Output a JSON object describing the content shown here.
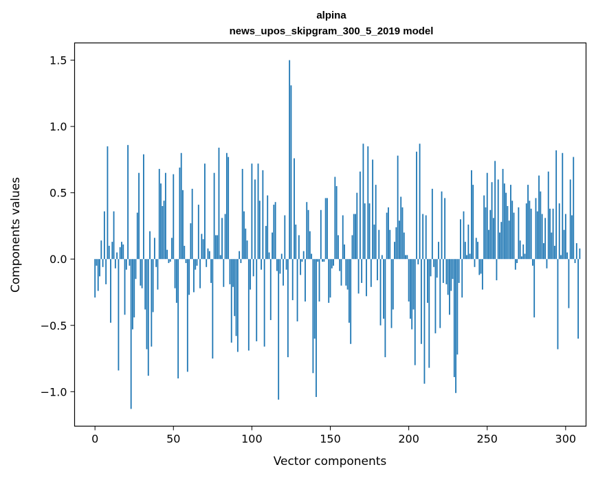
{
  "chart_data": {
    "type": "bar",
    "title": "alpina",
    "subtitle": "news_upos_skipgram_300_5_2019 model",
    "xlabel": "Vector components",
    "ylabel": "Components values",
    "xlim": [
      -13,
      313
    ],
    "ylim": [
      -1.26,
      1.63
    ],
    "xticks": [
      0,
      50,
      100,
      150,
      200,
      250,
      300
    ],
    "yticks": [
      -1.0,
      -0.5,
      0.0,
      0.5,
      1.0,
      1.5
    ],
    "yticklabels": [
      "−1.0",
      "−0.5",
      "0.0",
      "0.5",
      "1.0",
      "1.5"
    ],
    "bar_color": "#1f77b4",
    "grid": false,
    "values": [
      -0.29,
      -0.05,
      -0.24,
      -0.13,
      0.14,
      -0.06,
      0.36,
      -0.19,
      0.85,
      0.1,
      -0.48,
      0.13,
      0.36,
      -0.07,
      0.05,
      -0.84,
      0.09,
      0.13,
      0.11,
      -0.42,
      -0.08,
      0.86,
      -0.05,
      -1.13,
      -0.53,
      -0.44,
      -0.15,
      0.35,
      0.65,
      -0.2,
      -0.22,
      0.79,
      -0.38,
      -0.68,
      -0.88,
      0.21,
      -0.66,
      -0.4,
      0.16,
      -0.06,
      -0.23,
      0.68,
      0.57,
      0.4,
      0.44,
      0.65,
      0.07,
      -0.03,
      -0.02,
      0.16,
      0.64,
      -0.22,
      -0.33,
      -0.9,
      0.69,
      0.8,
      0.52,
      0.1,
      -0.03,
      -0.85,
      -0.27,
      0.27,
      0.53,
      -0.25,
      -0.08,
      -0.05,
      0.41,
      -0.22,
      0.19,
      0.15,
      0.72,
      -0.06,
      0.08,
      0.06,
      -0.18,
      -0.75,
      0.65,
      0.18,
      0.18,
      0.84,
      0.03,
      0.31,
      -0.21,
      0.34,
      0.8,
      0.77,
      -0.19,
      -0.63,
      -0.21,
      -0.43,
      -0.58,
      -0.7,
      0.06,
      -0.03,
      0.68,
      0.36,
      0.23,
      0.14,
      -0.69,
      -0.23,
      0.72,
      -0.13,
      0.6,
      -0.62,
      0.72,
      0.44,
      -0.08,
      0.67,
      -0.66,
      0.25,
      0.48,
      0.05,
      -0.46,
      0.2,
      0.41,
      0.43,
      -0.09,
      -1.06,
      -0.11,
      0.04,
      -0.2,
      0.33,
      -0.08,
      -0.74,
      1.5,
      1.31,
      -0.31,
      0.76,
      0.26,
      -0.47,
      0.18,
      -0.12,
      -0.02,
      0.06,
      -0.32,
      0.43,
      0.37,
      0.21,
      0.04,
      -0.86,
      -0.6,
      -1.04,
      -0.02,
      -0.32,
      0.37,
      -0.02,
      -0.02,
      0.46,
      0.46,
      -0.33,
      -0.29,
      -0.07,
      -0.05,
      0.62,
      0.55,
      0.18,
      -0.09,
      -0.2,
      0.33,
      0.11,
      -0.2,
      -0.23,
      -0.48,
      -0.64,
      0.18,
      0.34,
      0.34,
      0.5,
      -0.26,
      0.66,
      -0.18,
      0.87,
      0.42,
      -0.28,
      0.85,
      0.42,
      -0.21,
      0.75,
      0.26,
      0.56,
      -0.16,
      0.22,
      -0.5,
      0.03,
      -0.45,
      -0.74,
      0.35,
      0.39,
      0.22,
      -0.52,
      -0.38,
      0.13,
      0.24,
      0.78,
      0.29,
      0.47,
      0.39,
      0.2,
      0.03,
      0.03,
      -0.32,
      -0.45,
      -0.53,
      -0.38,
      -0.8,
      0.81,
      -0.04,
      0.87,
      -0.64,
      0.34,
      -0.94,
      0.33,
      -0.33,
      -0.82,
      -0.13,
      0.53,
      -0.06,
      -0.56,
      -0.14,
      0.13,
      -0.52,
      0.51,
      -0.18,
      0.46,
      -0.19,
      -0.27,
      -0.42,
      -0.24,
      -0.15,
      -0.89,
      -1.01,
      -0.72,
      -0.18,
      0.3,
      -0.29,
      0.36,
      0.13,
      0.03,
      0.26,
      0.04,
      0.67,
      0.56,
      -0.06,
      0.16,
      0.13,
      -0.12,
      -0.11,
      -0.23,
      0.48,
      0.39,
      0.65,
      0.22,
      0.37,
      0.58,
      0.31,
      0.74,
      -0.16,
      0.6,
      0.2,
      0.28,
      0.68,
      0.57,
      0.5,
      0.4,
      0.29,
      0.56,
      0.44,
      0.35,
      -0.08,
      -0.03,
      0.39,
      0.14,
      0.02,
      0.11,
      0.04,
      0.42,
      0.56,
      0.44,
      0.38,
      -0.05,
      -0.44,
      0.46,
      0.36,
      0.63,
      0.51,
      0.34,
      0.12,
      0.31,
      -0.07,
      0.66,
      0.38,
      0.2,
      0.38,
      0.1,
      0.82,
      -0.68,
      0.42,
      0.03,
      0.8,
      0.22,
      0.34,
      0.05,
      -0.37,
      0.6,
      0.33,
      0.77,
      -0.03,
      0.12,
      -0.6,
      0.08
    ]
  }
}
